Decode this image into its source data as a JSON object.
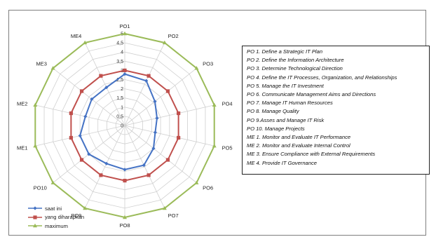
{
  "chart_data": {
    "type": "radar",
    "axes": [
      "PO 1",
      "PO 2",
      "PO 3",
      "PO 4",
      "PO 5",
      "PO 6",
      "PO 7",
      "PO 8",
      "PO 9",
      "PO 10",
      "ME 1",
      "ME 2",
      "ME 3",
      "ME 4"
    ],
    "scale": {
      "min": 0,
      "max": 5,
      "step": 0.5
    },
    "tick_labels": [
      "0",
      "0,5",
      "1",
      "1,5",
      "2",
      "2,5",
      "3",
      "3,5",
      "4",
      "4,5",
      "5"
    ],
    "grid": true,
    "legend_position": "bottom-left",
    "series": [
      {
        "name": "saat ini",
        "color": "#4472c4",
        "marker": "diamond",
        "values": [
          2.8,
          2.7,
          2.1,
          1.8,
          1.7,
          2.0,
          2.4,
          2.4,
          2.3,
          2.5,
          2.5,
          2.2,
          2.3,
          2.3
        ]
      },
      {
        "name": "yang diharapkan",
        "color": "#c0504d",
        "marker": "square",
        "values": [
          3.0,
          3.0,
          3.0,
          3.0,
          3.0,
          3.0,
          3.0,
          3.0,
          3.0,
          3.0,
          3.0,
          3.0,
          3.0,
          3.0
        ]
      },
      {
        "name": "maximum",
        "color": "#9bbb59",
        "marker": "triangle",
        "values": [
          5,
          5,
          5,
          5,
          5,
          5,
          5,
          5,
          5,
          5,
          5,
          5,
          5,
          5
        ]
      }
    ]
  },
  "description_box": {
    "lines": [
      "PO 1. Define a Strategic IT Plan",
      "PO 2. Define the Information Architecture",
      "PO 3. Determine Technological Direction",
      "PO 4. Define the IT Processes, Organization, and Relationships",
      "PO 5. Manage the IT Investment",
      "PO 6. Communicate Management Aims and Directions",
      "PO 7. Manage IT Human Resources",
      "PO 8. Manage Quality",
      "PO 9.Asses and Manage IT Risk",
      "PO 10. Manage Projects",
      "ME 1. Monitor and Evaluate IT Performance",
      "ME 2. Monitor and Evaluate Internal Control",
      "ME 3. Ensure Compliance with External Requirements",
      "ME 4. Provide IT Governance"
    ]
  }
}
